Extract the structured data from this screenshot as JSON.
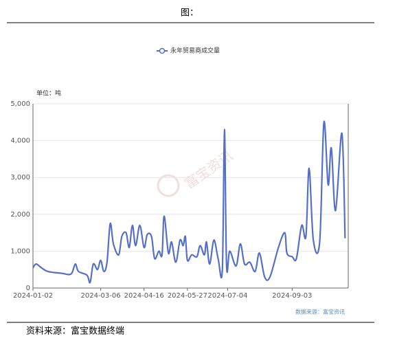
{
  "header": {
    "title": "图："
  },
  "chart_data": {
    "type": "line",
    "unit_label": "单位：吨",
    "watermark": "富宝资讯",
    "source_note": "数据来源：富宝资讯",
    "series": [
      {
        "name": "永年贸易商成交量",
        "color": "#5470c6",
        "x": [
          "2024-01-02",
          "2024-01-05",
          "2024-01-10",
          "2024-01-16",
          "2024-01-29",
          "2024-02-07",
          "2024-02-11",
          "2024-02-14",
          "2024-02-22",
          "2024-02-25",
          "2024-02-28",
          "2024-03-03",
          "2024-03-06",
          "2024-03-09",
          "2024-03-12",
          "2024-03-15",
          "2024-03-18",
          "2024-03-23",
          "2024-03-26",
          "2024-03-30",
          "2024-04-02",
          "2024-04-05",
          "2024-04-08",
          "2024-04-12",
          "2024-04-16",
          "2024-04-19",
          "2024-04-23",
          "2024-04-26",
          "2024-04-30",
          "2024-05-03",
          "2024-05-05",
          "2024-05-09",
          "2024-05-12",
          "2024-05-16",
          "2024-05-20",
          "2024-05-23",
          "2024-05-25",
          "2024-05-27",
          "2024-05-31",
          "2024-06-05",
          "2024-06-08",
          "2024-06-12",
          "2024-06-14",
          "2024-06-17",
          "2024-06-21",
          "2024-06-25",
          "2024-06-29",
          "2024-07-01",
          "2024-07-03",
          "2024-07-06",
          "2024-07-12",
          "2024-07-16",
          "2024-07-20",
          "2024-07-25",
          "2024-07-30",
          "2024-08-03",
          "2024-08-08",
          "2024-08-13",
          "2024-08-21",
          "2024-08-27",
          "2024-08-29",
          "2024-09-03",
          "2024-09-07",
          "2024-09-12",
          "2024-09-16",
          "2024-09-19",
          "2024-09-23",
          "2024-09-29",
          "2024-10-03",
          "2024-10-07",
          "2024-10-10",
          "2024-10-14",
          "2024-10-20",
          "2024-10-23"
        ],
        "values": [
          550,
          650,
          550,
          450,
          400,
          380,
          650,
          450,
          350,
          150,
          650,
          500,
          750,
          450,
          700,
          1750,
          1200,
          900,
          1400,
          1500,
          1100,
          1700,
          1150,
          1700,
          1100,
          1450,
          1400,
          800,
          1000,
          900,
          1950,
          950,
          1250,
          700,
          1300,
          1150,
          1400,
          750,
          900,
          850,
          1150,
          900,
          1250,
          650,
          1300,
          800,
          500,
          4300,
          600,
          1000,
          600,
          1200,
          650,
          700,
          450,
          950,
          300,
          300,
          1100,
          1500,
          950,
          850,
          800,
          1700,
          1400,
          3250,
          1300,
          1250,
          4500,
          2800,
          3800,
          2100,
          4200,
          1350
        ]
      }
    ],
    "xlim": [
      "2024-01-02",
      "2024-10-26"
    ],
    "xticks": [
      "2024-01-02",
      "2024-03-06",
      "2024-04-16",
      "2024-05-27",
      "2024-07-04",
      "2024-09-03"
    ],
    "ylim": [
      0,
      5000
    ],
    "yticks": [
      0,
      {
        "value": 1000,
        "label": "1,000"
      },
      {
        "value": 2000,
        "label": "2,000"
      },
      {
        "value": 3000,
        "label": "3,000"
      },
      {
        "value": 4000,
        "label": "4,000"
      },
      {
        "value": 5000,
        "label": "5,000"
      }
    ],
    "grid": true
  },
  "footer": {
    "source": "资料来源：富宝数据终端"
  }
}
